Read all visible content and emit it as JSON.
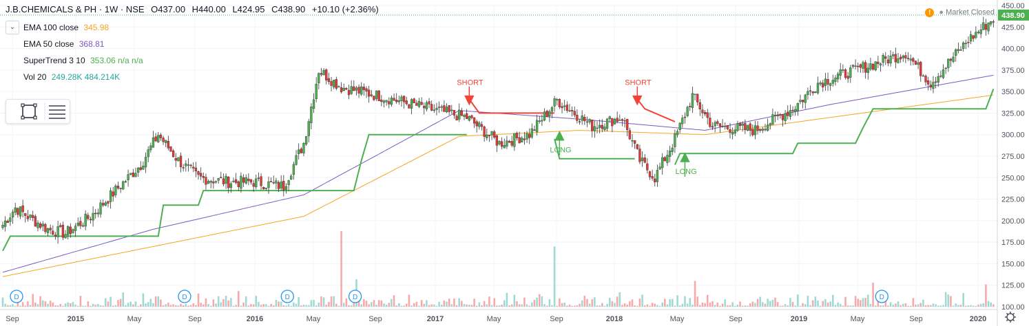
{
  "header": {
    "symbol": "J.B.CHEMICALS & PH · 1W · NSE",
    "open": "O437.00",
    "high": "H440.00",
    "low": "L424.95",
    "close": "C438.90",
    "change": "+10.10 (+2.36%)"
  },
  "indicators": [
    {
      "label": "EMA 100 close",
      "value": "345.98",
      "color": "#f5a623"
    },
    {
      "label": "EMA 50 close",
      "value": "368.81",
      "color": "#7e57c2"
    },
    {
      "label": "SuperTrend 3 10",
      "value": "353.06 n/a n/a",
      "color": "#4caf50"
    },
    {
      "label": "Vol 20",
      "value": "249.28K  484.214K",
      "color": "#26a69a"
    }
  ],
  "market_status": "Market Closed",
  "last_price": "438.90",
  "colors": {
    "up": "#26a69a",
    "down": "#ef5350",
    "candle_up": "#4caf50",
    "candle_down": "#e53935",
    "ema100": "#f5a623",
    "ema50": "#7e57c2",
    "supertrend_up": "#4caf50",
    "supertrend_down": "#f44336"
  },
  "icons": [
    "chevron-down-icon",
    "rectangle-tool-icon",
    "menu-lines-icon",
    "warning-icon",
    "settings-gear-icon"
  ],
  "chart_data": {
    "type": "candlestick",
    "y_ticks": [
      "450.00",
      "425.00",
      "400.00",
      "375.00",
      "350.00",
      "325.00",
      "300.00",
      "275.00",
      "250.00",
      "225.00",
      "200.00",
      "175.00",
      "150.00",
      "125.00",
      "100.00"
    ],
    "ylim": [
      100,
      450
    ],
    "x_ticks": [
      "Sep",
      "2015",
      "May",
      "Sep",
      "2016",
      "May",
      "Sep",
      "2017",
      "May",
      "Sep",
      "2018",
      "May",
      "Sep",
      "2019",
      "May",
      "Sep",
      "2020"
    ],
    "annotations": [
      "SHORT",
      "LONG",
      "SHORT",
      "LONG"
    ],
    "dividend_marker": "D",
    "price_anchors": [
      [
        0,
        195
      ],
      [
        5,
        215
      ],
      [
        10,
        205
      ],
      [
        18,
        190
      ],
      [
        25,
        185
      ],
      [
        35,
        205
      ],
      [
        45,
        235
      ],
      [
        55,
        265
      ],
      [
        62,
        300
      ],
      [
        70,
        270
      ],
      [
        78,
        250
      ],
      [
        90,
        245
      ],
      [
        100,
        245
      ],
      [
        112,
        240
      ],
      [
        120,
        290
      ],
      [
        126,
        375
      ],
      [
        135,
        355
      ],
      [
        150,
        345
      ],
      [
        170,
        330
      ],
      [
        185,
        320
      ],
      [
        198,
        290
      ],
      [
        210,
        300
      ],
      [
        221,
        340
      ],
      [
        228,
        325
      ],
      [
        235,
        310
      ],
      [
        247,
        320
      ],
      [
        254,
        270
      ],
      [
        260,
        250
      ],
      [
        268,
        295
      ],
      [
        275,
        345
      ],
      [
        283,
        310
      ],
      [
        300,
        305
      ],
      [
        315,
        330
      ],
      [
        325,
        360
      ],
      [
        340,
        375
      ],
      [
        360,
        395
      ],
      [
        370,
        360
      ],
      [
        385,
        410
      ],
      [
        395,
        435
      ]
    ],
    "ema100": [
      [
        0,
        135
      ],
      [
        60,
        170
      ],
      [
        120,
        205
      ],
      [
        182,
        298
      ],
      [
        230,
        305
      ],
      [
        280,
        300
      ],
      [
        330,
        320
      ],
      [
        395,
        346
      ]
    ],
    "ema50": [
      [
        0,
        140
      ],
      [
        60,
        190
      ],
      [
        120,
        230
      ],
      [
        182,
        328
      ],
      [
        230,
        318
      ],
      [
        280,
        305
      ],
      [
        330,
        335
      ],
      [
        395,
        369
      ]
    ],
    "supertrend": [
      {
        "dir": "up",
        "points": [
          [
            0,
            165
          ],
          [
            3,
            182
          ],
          [
            62,
            182
          ],
          [
            64,
            218
          ],
          [
            78,
            218
          ],
          [
            80,
            235
          ],
          [
            140,
            235
          ],
          [
            143,
            270
          ],
          [
            146,
            300
          ],
          [
            185,
            300
          ]
        ]
      },
      {
        "dir": "down",
        "points": [
          [
            185,
            345
          ],
          [
            190,
            325
          ],
          [
            220,
            325
          ]
        ]
      },
      {
        "dir": "up",
        "points": [
          [
            220,
            295
          ],
          [
            222,
            272
          ],
          [
            252,
            272
          ]
        ]
      },
      {
        "dir": "down",
        "points": [
          [
            252,
            345
          ],
          [
            256,
            330
          ],
          [
            268,
            315
          ]
        ]
      },
      {
        "dir": "up",
        "points": [
          [
            268,
            265
          ],
          [
            270,
            278
          ],
          [
            315,
            278
          ],
          [
            317,
            290
          ],
          [
            340,
            290
          ],
          [
            343,
            308
          ],
          [
            347,
            330
          ],
          [
            392,
            330
          ],
          [
            395,
            353
          ]
        ]
      }
    ],
    "signals": [
      {
        "type": "SHORT",
        "bar": 186,
        "price": 340
      },
      {
        "type": "LONG",
        "bar": 222,
        "price": 300
      },
      {
        "type": "SHORT",
        "bar": 253,
        "price": 340
      },
      {
        "type": "LONG",
        "bar": 272,
        "price": 275
      }
    ],
    "dividends": [
      0,
      67,
      108,
      135,
      345
    ],
    "volume_spikes": [
      [
        135,
        188
      ],
      [
        141,
        132
      ],
      [
        220,
        170
      ],
      [
        276,
        130
      ],
      [
        347,
        128
      ],
      [
        392,
        126
      ]
    ]
  }
}
